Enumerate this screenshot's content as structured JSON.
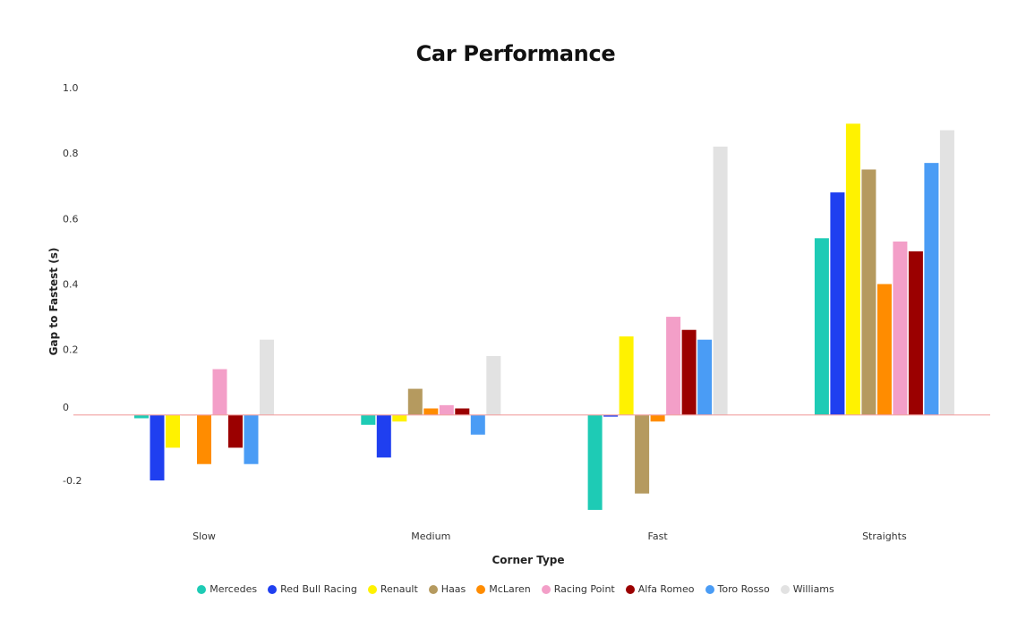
{
  "chart_data": {
    "type": "bar",
    "title": "Car Performance",
    "xlabel": "Corner Type",
    "ylabel": "Gap to Fastest (s)",
    "ylim": [
      -0.3,
      1.0
    ],
    "yticks": [
      {
        "value": 1.0,
        "label": "1.0"
      },
      {
        "value": 0.8,
        "label": "0.8"
      },
      {
        "value": 0.6,
        "label": "0.6"
      },
      {
        "value": 0.4,
        "label": "0.4"
      },
      {
        "value": 0.2,
        "label": "0.2"
      },
      {
        "value": 0,
        "label": "0"
      },
      {
        "value": -0.2,
        "label": "-0.2"
      }
    ],
    "grid": false,
    "legend_position": "bottom",
    "zero_line_color": "#f2a3a3",
    "categories": [
      "Slow",
      "Medium",
      "Fast",
      "Straights"
    ],
    "series": [
      {
        "name": "Mercedes",
        "color": "#1ecbb5",
        "values": [
          -0.01,
          -0.03,
          -0.29,
          0.54
        ]
      },
      {
        "name": "Red Bull Racing",
        "color": "#1f3ff0",
        "values": [
          -0.2,
          -0.13,
          -0.005,
          0.68
        ]
      },
      {
        "name": "Renault",
        "color": "#fff200",
        "values": [
          -0.1,
          -0.02,
          0.24,
          0.89
        ]
      },
      {
        "name": "Haas",
        "color": "#b59a5f",
        "values": [
          0,
          0.08,
          -0.24,
          0.75
        ]
      },
      {
        "name": "McLaren",
        "color": "#ff8c00",
        "values": [
          -0.15,
          0.02,
          -0.02,
          0.4
        ]
      },
      {
        "name": "Racing Point",
        "color": "#f39fc8",
        "values": [
          0.14,
          0.03,
          0.3,
          0.53
        ]
      },
      {
        "name": "Alfa Romeo",
        "color": "#9b0000",
        "values": [
          -0.1,
          0.02,
          0.26,
          0.5
        ]
      },
      {
        "name": "Toro Rosso",
        "color": "#4a9cf5",
        "values": [
          -0.15,
          -0.06,
          0.23,
          0.77
        ]
      },
      {
        "name": "Williams",
        "color": "#e2e2e2",
        "values": [
          0.23,
          0.18,
          0.82,
          0.87
        ]
      }
    ]
  }
}
